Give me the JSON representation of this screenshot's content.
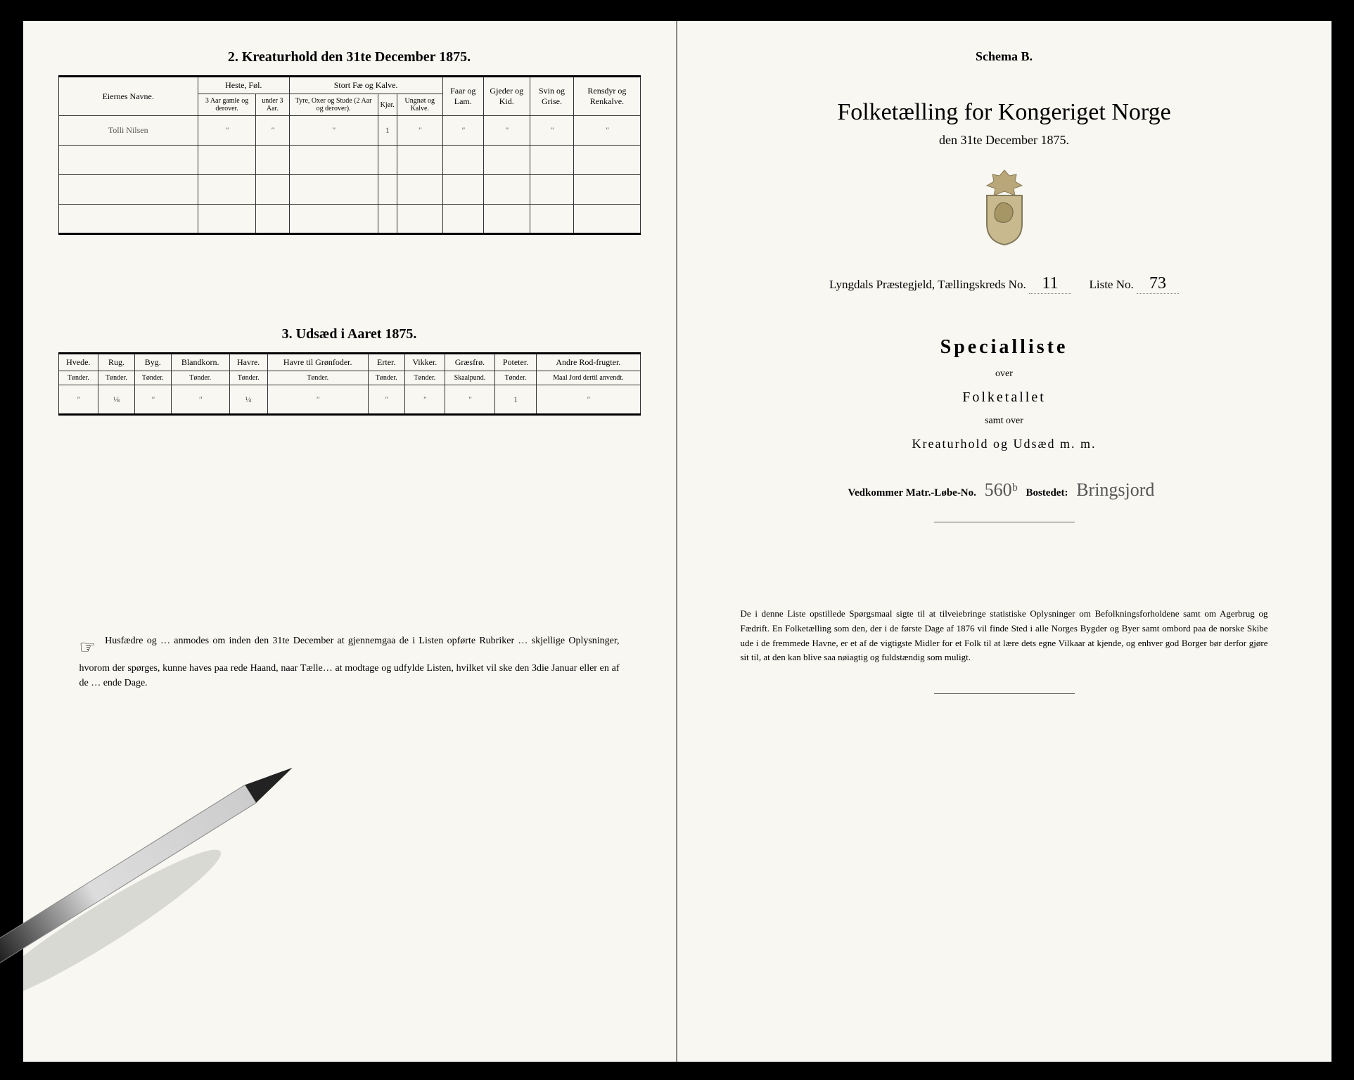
{
  "leftPage": {
    "section2": {
      "title": "2.  Kreaturhold den 31te December 1875.",
      "colgroup1": "Eiernes Navne.",
      "colgroup2": "Heste, Føl.",
      "colgroup3": "Stort Fæ og Kalve.",
      "col_faar": "Faar og Lam.",
      "col_gjeder": "Gjeder og Kid.",
      "col_svin": "Svin og Grise.",
      "col_rens": "Rensdyr og Renkalve.",
      "sub_heste1": "3 Aar gamle og derover.",
      "sub_heste2": "under 3 Aar.",
      "sub_fae1": "Tyre, Oxer og Stude (2 Aar og derover).",
      "sub_fae2": "Kjør.",
      "sub_fae3": "Ungnøt og Kalve.",
      "row1_name": "Tolli Nilsen",
      "row1": [
        "\"",
        "\"",
        "\"",
        "1",
        "\"",
        "\"",
        "\"",
        "\"",
        "\""
      ]
    },
    "section3": {
      "title": "3.  Udsæd i Aaret 1875.",
      "headers": [
        "Hvede.",
        "Rug.",
        "Byg.",
        "Blandkorn.",
        "Havre.",
        "Havre til Grønfoder.",
        "Erter.",
        "Vikker.",
        "Græsfrø.",
        "Poteter.",
        "Andre Rod-frugter."
      ],
      "subheaders": [
        "Tønder.",
        "Tønder.",
        "Tønder.",
        "Tønder.",
        "Tønder.",
        "Tønder.",
        "Tønder.",
        "Tønder.",
        "Skaalpund.",
        "Tønder.",
        "Maal Jord dertil anvendt."
      ],
      "row1": [
        "\"",
        "⅛",
        "\"",
        "\"",
        "¼",
        "\"",
        "\"",
        "\"",
        "\"",
        "1",
        "\""
      ]
    },
    "footnote": "Husfædre og … anmodes om inden den 31te December at gjennemgaa de i Listen opførte Rubriker … skjellige Oplysninger, hvorom der spørges, kunne haves paa rede Haand, naar Tælle… at modtage og udfylde Listen, hvilket vil ske den 3die Januar eller en af de … ende Dage."
  },
  "rightPage": {
    "schema": "Schema B.",
    "mainTitle": "Folketælling for Kongeriget Norge",
    "subtitle": "den 31te December 1875.",
    "parish_label": "Lyngdals Præstegjeld, Tællingskreds No.",
    "parish_no": "11",
    "liste_label": "Liste No.",
    "liste_no": "73",
    "specialliste": "Specialliste",
    "over": "over",
    "folketallet": "Folketallet",
    "samtover": "samt over",
    "kreatur": "Kreaturhold og Udsæd m. m.",
    "matr_label1": "Vedkommer Matr.-Løbe-No.",
    "matr_no": "560ᵇ",
    "matr_label2": "Bostedet:",
    "bosted": "Bringsjord",
    "footnote": "De i denne Liste opstillede Spørgsmaal sigte til at tilveiebringe statistiske Oplysninger om Befolkningsforholdene samt om Agerbrug og Fædrift.  En Folketælling som den, der i de første Dage af 1876 vil finde Sted i alle Norges Bygder og Byer samt ombord paa de norske Skibe ude i de fremmede Havne, er et af de vigtigste Midler for et Folk til at lære dets egne Vilkaar at kjende, og enhver god Borger bør derfor gjøre sit til, at den kan blive saa nøiagtig og fuldstændig som muligt."
  },
  "colors": {
    "paper": "#f8f7f2",
    "ink": "#222222",
    "handwriting": "#555555"
  }
}
